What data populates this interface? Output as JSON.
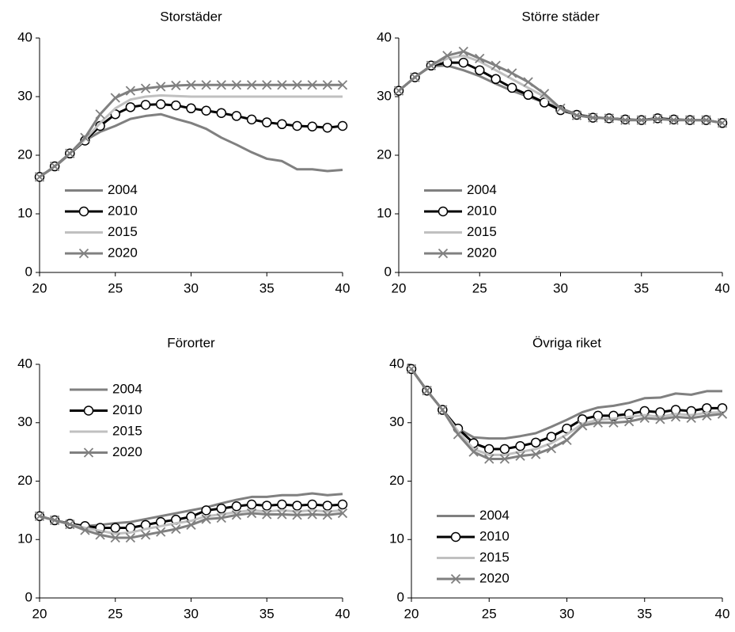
{
  "chart_data": [
    {
      "type": "line",
      "title": "Storstäder",
      "legend": "lower left",
      "x": [
        20,
        21,
        22,
        23,
        24,
        25,
        26,
        27,
        28,
        29,
        30,
        31,
        32,
        33,
        34,
        35,
        36,
        37,
        38,
        39,
        40
      ],
      "xlim": [
        20,
        40
      ],
      "xticks": [
        20,
        25,
        30,
        35,
        40
      ],
      "ylim": [
        0,
        40
      ],
      "yticks": [
        0,
        10,
        20,
        30,
        40
      ],
      "series": [
        {
          "name": "2004",
          "color": "#808080",
          "marker": "none",
          "values": [
            16.3,
            18,
            20.2,
            22.5,
            24,
            25,
            26.2,
            26.7,
            27,
            26.2,
            25.5,
            24.5,
            23,
            21.8,
            20.5,
            19.4,
            19,
            17.6,
            17.6,
            17.3,
            17.5
          ]
        },
        {
          "name": "2010",
          "color": "#000000",
          "marker": "circle",
          "values": [
            16.3,
            18.1,
            20.3,
            22.5,
            25,
            27,
            28.2,
            28.6,
            28.7,
            28.5,
            28,
            27.6,
            27.2,
            26.7,
            26.1,
            25.6,
            25.3,
            25,
            24.9,
            24.7,
            25
          ]
        },
        {
          "name": "2015",
          "color": "#c0c0c0",
          "marker": "none",
          "values": [
            16.3,
            18.1,
            20.3,
            22.7,
            25.5,
            28,
            29.5,
            30,
            30.2,
            30.1,
            30,
            30,
            30,
            30,
            30,
            30,
            30,
            30,
            30,
            30,
            30
          ]
        },
        {
          "name": "2020",
          "color": "#808080",
          "marker": "x",
          "values": [
            16.3,
            18.1,
            20.3,
            23,
            27,
            29.8,
            31,
            31.4,
            31.7,
            31.9,
            32,
            32,
            32,
            32,
            32,
            32,
            32,
            32,
            32,
            32,
            32
          ]
        }
      ]
    },
    {
      "type": "line",
      "title": "Större städer",
      "legend": "lower left",
      "x": [
        20,
        21,
        22,
        23,
        24,
        25,
        26,
        27,
        28,
        29,
        30,
        31,
        32,
        33,
        34,
        35,
        36,
        37,
        38,
        39,
        40
      ],
      "xlim": [
        20,
        40
      ],
      "xticks": [
        20,
        25,
        30,
        35,
        40
      ],
      "ylim": [
        0,
        40
      ],
      "yticks": [
        0,
        10,
        20,
        30,
        40
      ],
      "series": [
        {
          "name": "2004",
          "color": "#808080",
          "marker": "none",
          "values": [
            31,
            33.3,
            35.2,
            35.3,
            34.5,
            33.5,
            32.2,
            31,
            30,
            29,
            28,
            27,
            26.5,
            26.3,
            26,
            26,
            26.2,
            26,
            26,
            26,
            25.5
          ]
        },
        {
          "name": "2010",
          "color": "#000000",
          "marker": "circle",
          "values": [
            31,
            33.3,
            35.3,
            35.8,
            35.8,
            34.5,
            33,
            31.5,
            30.3,
            29,
            27.7,
            26.9,
            26.4,
            26.3,
            26.1,
            26,
            26.3,
            26.1,
            26,
            26,
            25.5
          ]
        },
        {
          "name": "2015",
          "color": "#c0c0c0",
          "marker": "none",
          "values": [
            31,
            33.3,
            35.3,
            36.5,
            37,
            36,
            34.5,
            33,
            31.5,
            30,
            28,
            26.8,
            26.4,
            26.3,
            26,
            26,
            26.2,
            26,
            26,
            26,
            25.5
          ]
        },
        {
          "name": "2020",
          "color": "#808080",
          "marker": "x",
          "values": [
            31,
            33.3,
            35.3,
            37,
            37.7,
            36.5,
            35.3,
            34,
            32.5,
            30.5,
            28,
            26.8,
            26.4,
            26.3,
            26,
            26,
            26.2,
            26,
            26,
            26,
            25.5
          ]
        }
      ]
    },
    {
      "type": "line",
      "title": "Förorter",
      "legend": "upper left",
      "x": [
        20,
        21,
        22,
        23,
        24,
        25,
        26,
        27,
        28,
        29,
        30,
        31,
        32,
        33,
        34,
        35,
        36,
        37,
        38,
        39,
        40
      ],
      "xlim": [
        20,
        40
      ],
      "xticks": [
        20,
        25,
        30,
        35,
        40
      ],
      "ylim": [
        0,
        40
      ],
      "yticks": [
        0,
        10,
        20,
        30,
        40
      ],
      "series": [
        {
          "name": "2004",
          "color": "#808080",
          "marker": "none",
          "values": [
            14,
            13.3,
            12.7,
            12.3,
            12.5,
            12.8,
            13,
            13.5,
            14,
            14.5,
            15,
            15.5,
            16.2,
            16.8,
            17.3,
            17.3,
            17.6,
            17.6,
            17.9,
            17.6,
            17.8
          ]
        },
        {
          "name": "2010",
          "color": "#000000",
          "marker": "circle",
          "values": [
            14,
            13.3,
            12.7,
            12.3,
            12,
            12,
            12,
            12.5,
            13,
            13.4,
            13.9,
            15,
            15.3,
            15.7,
            16,
            15.8,
            16,
            15.8,
            16,
            15.8,
            16
          ]
        },
        {
          "name": "2015",
          "color": "#c0c0c0",
          "marker": "none",
          "values": [
            14,
            13.3,
            12.6,
            12,
            11.5,
            11,
            11.2,
            11.8,
            12.3,
            12.8,
            13.2,
            14,
            14.3,
            14.7,
            15,
            14.8,
            15,
            14.8,
            15,
            14.8,
            15
          ]
        },
        {
          "name": "2020",
          "color": "#808080",
          "marker": "x",
          "values": [
            14,
            13.3,
            12.6,
            11.6,
            10.8,
            10.3,
            10.3,
            10.8,
            11.3,
            11.8,
            12.5,
            13.5,
            13.7,
            14.2,
            14.5,
            14.3,
            14.3,
            14.2,
            14.3,
            14.2,
            14.5
          ]
        }
      ]
    },
    {
      "type": "line",
      "title": "Övriga riket",
      "legend": "lower left",
      "x": [
        20,
        21,
        22,
        23,
        24,
        25,
        26,
        27,
        28,
        29,
        30,
        31,
        32,
        33,
        34,
        35,
        36,
        37,
        38,
        39,
        40
      ],
      "xlim": [
        20,
        40
      ],
      "xticks": [
        20,
        25,
        30,
        35,
        40
      ],
      "ylim": [
        0,
        40
      ],
      "yticks": [
        0,
        10,
        20,
        30,
        40
      ],
      "series": [
        {
          "name": "2004",
          "color": "#808080",
          "marker": "none",
          "values": [
            39.2,
            35.5,
            32.2,
            29,
            27.5,
            27.3,
            27.3,
            27.7,
            28.2,
            29.3,
            30.5,
            31.8,
            32.6,
            32.9,
            33.4,
            34.2,
            34.3,
            35,
            34.8,
            35.4,
            35.4
          ]
        },
        {
          "name": "2010",
          "color": "#000000",
          "marker": "circle",
          "values": [
            39.2,
            35.5,
            32.2,
            29,
            26.5,
            25.5,
            25.5,
            26,
            26.6,
            27.6,
            29,
            30.6,
            31.2,
            31.2,
            31.5,
            32,
            31.8,
            32.2,
            32,
            32.5,
            32.5
          ]
        },
        {
          "name": "2015",
          "color": "#c0c0c0",
          "marker": "none",
          "values": [
            39.2,
            35.5,
            32.2,
            28.5,
            25.5,
            24.5,
            24.5,
            25,
            25.5,
            26.5,
            28,
            29.8,
            30.5,
            30.7,
            31,
            31.3,
            31,
            31.5,
            31.3,
            31.7,
            31.8
          ]
        },
        {
          "name": "2020",
          "color": "#808080",
          "marker": "x",
          "values": [
            39.2,
            35.5,
            32.2,
            28,
            25,
            23.8,
            23.8,
            24.3,
            24.6,
            25.6,
            27,
            29.5,
            30,
            30,
            30.2,
            30.8,
            30.6,
            31,
            30.8,
            31.2,
            31.5
          ]
        }
      ]
    }
  ]
}
